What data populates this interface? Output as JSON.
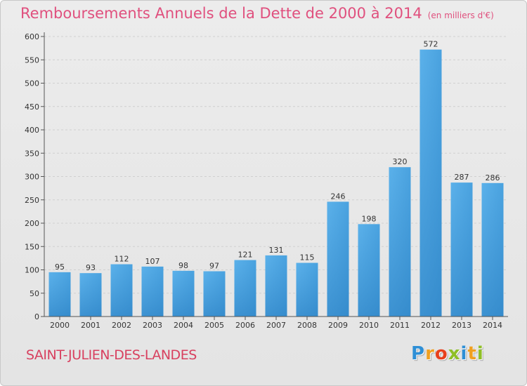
{
  "title": "Remboursements Annuels de la Dette de 2000 à 2014",
  "subtitle": "(en milliers d'€)",
  "commune": "SAINT-JULIEN-DES-LANDES",
  "logo": {
    "text": "Proxiti",
    "letters": [
      "P",
      "r",
      "o",
      "x",
      "i",
      "t",
      "i"
    ],
    "colors": [
      "#2e8fd6",
      "#f0a020",
      "#e8401c",
      "#8fbf26",
      "#2e8fd6",
      "#f0a020",
      "#8fbf26"
    ]
  },
  "colors": {
    "title": "#e0507e",
    "commune": "#d8405f",
    "bar_light": "#5bb1ea",
    "bar_dark": "#2479bd"
  },
  "chart_data": {
    "type": "bar",
    "title": "Remboursements Annuels de la Dette de 2000 à 2014",
    "subtitle": "(en milliers d'€)",
    "xlabel": "",
    "ylabel": "",
    "categories": [
      "2000",
      "2001",
      "2002",
      "2003",
      "2004",
      "2005",
      "2006",
      "2007",
      "2008",
      "2009",
      "2010",
      "2011",
      "2012",
      "2013",
      "2014"
    ],
    "values": [
      95,
      93,
      112,
      107,
      98,
      97,
      121,
      131,
      115,
      246,
      198,
      320,
      572,
      287,
      286
    ],
    "ylim": [
      0,
      600
    ],
    "yticks": [
      0,
      50,
      100,
      150,
      200,
      250,
      300,
      350,
      400,
      450,
      500,
      550,
      600
    ],
    "grid": true
  }
}
